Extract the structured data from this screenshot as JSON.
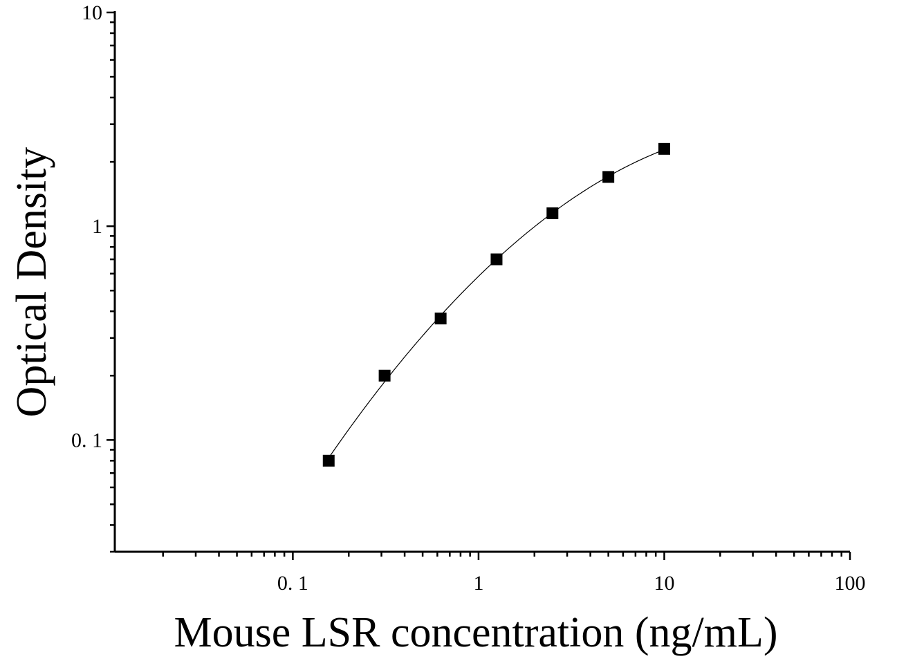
{
  "chart_data": {
    "type": "scatter",
    "title": "",
    "xlabel": "Mouse LSR concentration (ng/mL)",
    "ylabel": "Optical Density",
    "x_scale": "log",
    "y_scale": "log",
    "xlim": [
      0.011,
      100
    ],
    "ylim": [
      0.03,
      10
    ],
    "x_ticks": [
      {
        "value": 0.1,
        "label": "0. 1"
      },
      {
        "value": 1,
        "label": "1"
      },
      {
        "value": 10,
        "label": "10"
      },
      {
        "value": 100,
        "label": "100"
      }
    ],
    "y_ticks": [
      {
        "value": 0.1,
        "label": "0. 1"
      },
      {
        "value": 1,
        "label": "1"
      },
      {
        "value": 10,
        "label": "10"
      }
    ],
    "grid": false,
    "legend": "none",
    "series": [
      {
        "x": [
          0.156,
          0.312,
          0.625,
          1.25,
          2.5,
          5,
          10
        ],
        "y": [
          0.08,
          0.2,
          0.37,
          0.7,
          1.15,
          1.7,
          2.3
        ],
        "marker": "square",
        "fit_line": true,
        "color": "#000000"
      }
    ]
  }
}
